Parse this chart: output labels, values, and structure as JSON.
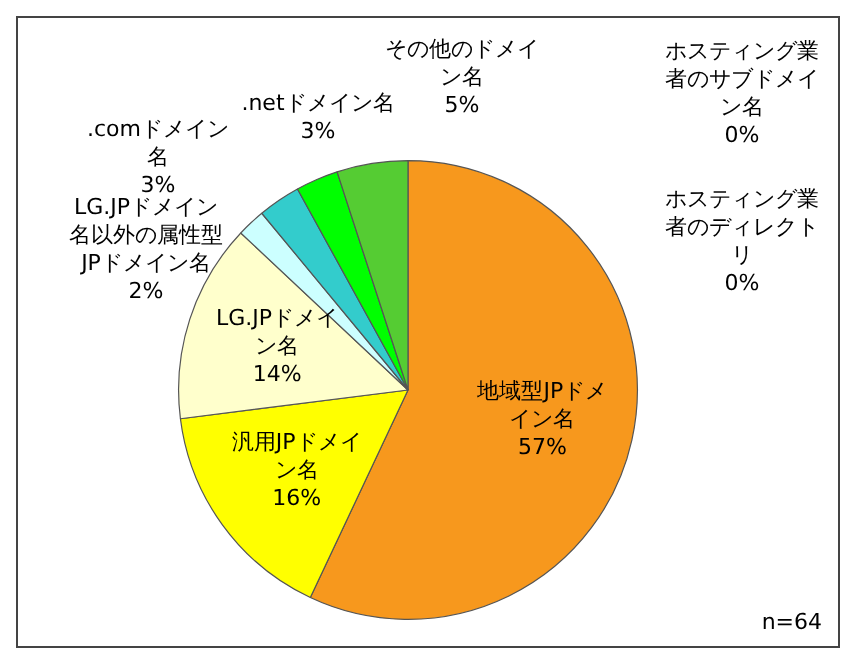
{
  "chart_data": {
    "type": "pie",
    "categories": [
      "地域型JPドメイン名",
      "汎用JPドメイン名",
      "LG.JPドメイン名",
      "LG.JPドメイン名以外の属性型JPドメイン名",
      ".comドメイン名",
      ".netドメイン名",
      "その他のドメイン名",
      "ホスティング業者のサブドメイン名",
      "ホスティング業者のディレクトリ"
    ],
    "values": [
      57,
      16,
      14,
      2,
      3,
      3,
      5,
      0,
      0
    ],
    "colors": [
      "#f7981d",
      "#ffff00",
      "#ffffcc",
      "#ccffff",
      "#33cccc",
      "#00ff00",
      "#55cc33",
      "#9999ff",
      "#cc99ff"
    ],
    "value_labels": [
      "57%",
      "16%",
      "14%",
      "2%",
      "3%",
      "3%",
      "5%",
      "0%",
      "0%"
    ],
    "legend": false,
    "annotations": [
      "n=64"
    ]
  }
}
